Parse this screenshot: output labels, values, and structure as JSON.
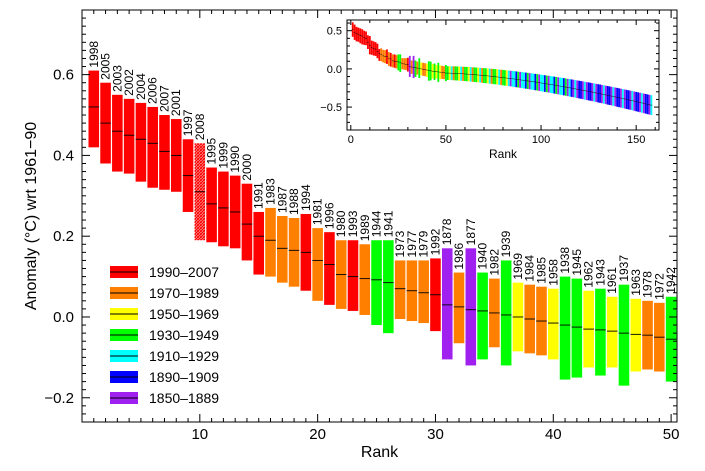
{
  "chart_data": [
    {
      "type": "bar",
      "subtype": "range-bars-with-central-estimate",
      "title": "",
      "xlabel": "Rank",
      "ylabel": "Anomaly (°C) wrt 1961−90",
      "xlim": [
        0,
        50.5
      ],
      "ylim": [
        -0.26,
        0.76
      ],
      "xticks": [
        10,
        20,
        30,
        40,
        50
      ],
      "yticks": [
        -0.2,
        0.0,
        0.2,
        0.4,
        0.6
      ],
      "ytick_labels": [
        "−0.2",
        "0.0",
        "0.2",
        "0.4",
        "0.6"
      ],
      "grid": false,
      "legend_position": "bottom-left",
      "legend": [
        {
          "label": "1990–2007",
          "color": "#ff0000"
        },
        {
          "label": "1970–1989",
          "color": "#ff7f00"
        },
        {
          "label": "1950–1969",
          "color": "#ffff00"
        },
        {
          "label": "1930–1949",
          "color": "#00ff00"
        },
        {
          "label": "1910–1929",
          "color": "#00ffff"
        },
        {
          "label": "1890–1909",
          "color": "#0000ff"
        },
        {
          "label": "1850–1889",
          "color": "#a020f0"
        }
      ],
      "ranks": [
        1,
        2,
        3,
        4,
        5,
        6,
        7,
        8,
        9,
        10,
        11,
        12,
        13,
        14,
        15,
        16,
        17,
        18,
        19,
        20,
        21,
        22,
        23,
        24,
        25,
        26,
        27,
        28,
        29,
        30,
        31,
        32,
        33,
        34,
        35,
        36,
        37,
        38,
        39,
        40,
        41,
        42,
        43,
        44,
        45,
        46,
        47,
        48,
        49,
        50
      ],
      "years": [
        "1998",
        "2005",
        "2003",
        "2002",
        "2004",
        "2006",
        "2007",
        "2001",
        "1997",
        "2008",
        "1995",
        "1999",
        "1990",
        "2000",
        "1991",
        "1983",
        "1987",
        "1988",
        "1994",
        "1981",
        "1996",
        "1980",
        "1993",
        "1989",
        "1944",
        "1941",
        "1973",
        "1977",
        "1979",
        "1992",
        "1878",
        "1986",
        "1877",
        "1940",
        "1982",
        "1939",
        "1969",
        "1984",
        "1985",
        "1958",
        "1938",
        "1945",
        "1962",
        "1943",
        "1961",
        "1937",
        "1963",
        "1978",
        "1972",
        "1942"
      ],
      "central": [
        0.52,
        0.48,
        0.46,
        0.45,
        0.44,
        0.43,
        0.41,
        0.4,
        0.35,
        0.31,
        0.28,
        0.27,
        0.26,
        0.23,
        0.2,
        0.19,
        0.17,
        0.165,
        0.16,
        0.14,
        0.13,
        0.105,
        0.1,
        0.095,
        0.092,
        0.085,
        0.07,
        0.065,
        0.06,
        0.055,
        0.03,
        0.025,
        0.018,
        0.015,
        0.01,
        0.005,
        0.0,
        -0.005,
        -0.01,
        -0.015,
        -0.02,
        -0.025,
        -0.03,
        -0.032,
        -0.035,
        -0.04,
        -0.043,
        -0.045,
        -0.05,
        -0.055
      ],
      "upper": [
        0.61,
        0.58,
        0.55,
        0.54,
        0.53,
        0.52,
        0.5,
        0.49,
        0.44,
        0.43,
        0.37,
        0.36,
        0.35,
        0.33,
        0.26,
        0.27,
        0.25,
        0.245,
        0.255,
        0.22,
        0.21,
        0.19,
        0.19,
        0.18,
        0.19,
        0.19,
        0.14,
        0.14,
        0.14,
        0.145,
        0.17,
        0.11,
        0.17,
        0.11,
        0.095,
        0.14,
        0.085,
        0.08,
        0.075,
        0.07,
        0.1,
        0.095,
        0.065,
        0.07,
        0.05,
        0.08,
        0.045,
        0.04,
        0.035,
        0.05
      ],
      "lower": [
        0.42,
        0.38,
        0.36,
        0.355,
        0.335,
        0.32,
        0.315,
        0.31,
        0.26,
        0.19,
        0.185,
        0.175,
        0.17,
        0.14,
        0.105,
        0.1,
        0.085,
        0.075,
        0.065,
        0.04,
        0.03,
        0.02,
        0.015,
        0.005,
        -0.02,
        -0.04,
        -0.005,
        -0.01,
        -0.015,
        -0.035,
        -0.105,
        -0.065,
        -0.12,
        -0.105,
        -0.075,
        -0.12,
        -0.085,
        -0.09,
        -0.095,
        -0.105,
        -0.155,
        -0.15,
        -0.125,
        -0.145,
        -0.125,
        -0.17,
        -0.135,
        -0.13,
        -0.135,
        -0.16
      ],
      "colors": [
        "#ff0000",
        "#ff0000",
        "#ff0000",
        "#ff0000",
        "#ff0000",
        "#ff0000",
        "#ff0000",
        "#ff0000",
        "#ff0000",
        "#ff0000",
        "#ff0000",
        "#ff0000",
        "#ff0000",
        "#ff0000",
        "#ff0000",
        "#ff7f00",
        "#ff7f00",
        "#ff7f00",
        "#ff0000",
        "#ff7f00",
        "#ff0000",
        "#ff7f00",
        "#ff0000",
        "#ff7f00",
        "#00ff00",
        "#00ff00",
        "#ff7f00",
        "#ff7f00",
        "#ff7f00",
        "#ff0000",
        "#a020f0",
        "#ff7f00",
        "#a020f0",
        "#00ff00",
        "#ff7f00",
        "#00ff00",
        "#ffff00",
        "#ff7f00",
        "#ff7f00",
        "#ffff00",
        "#00ff00",
        "#00ff00",
        "#ffff00",
        "#00ff00",
        "#ffff00",
        "#00ff00",
        "#ffff00",
        "#ff7f00",
        "#ff7f00",
        "#00ff00"
      ],
      "hatched_ranks": [
        10
      ]
    },
    {
      "type": "bar",
      "subtype": "inset-all-years",
      "xlabel": "Rank",
      "xlim": [
        -2,
        162
      ],
      "ylim": [
        -0.8,
        0.64
      ],
      "xticks": [
        0,
        50,
        100,
        150
      ],
      "yticks": [
        -0.5,
        0.0,
        0.5
      ],
      "ytick_labels": [
        "−0.5",
        "0.0",
        "0.5"
      ],
      "n": 158
    }
  ]
}
